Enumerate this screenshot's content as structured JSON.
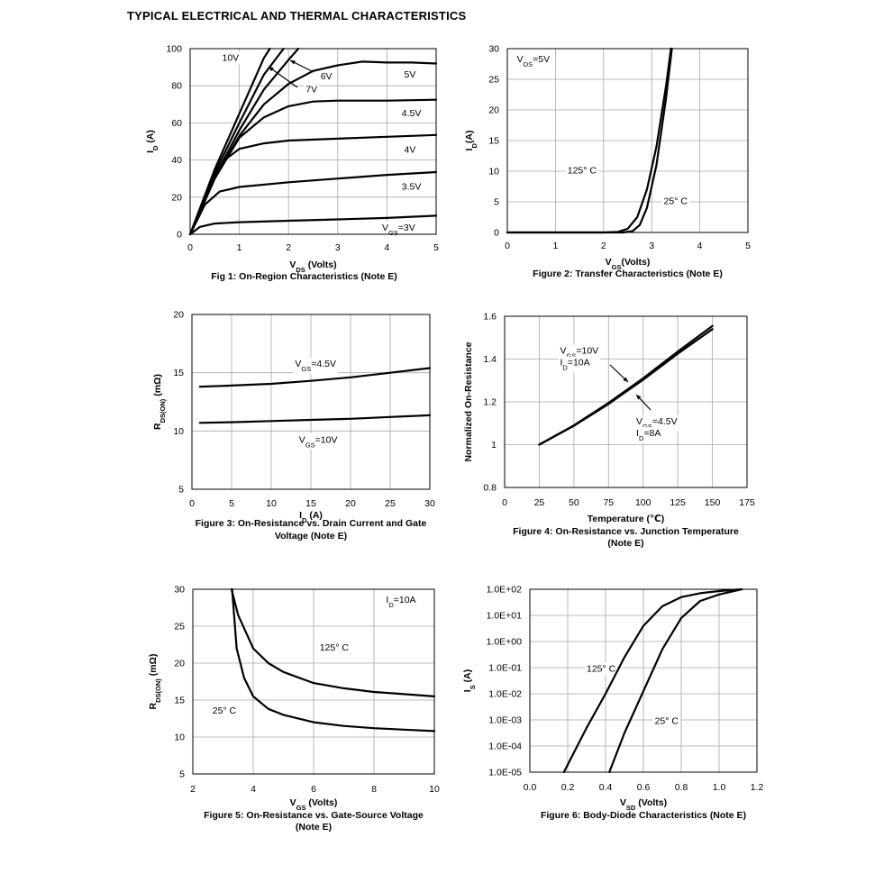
{
  "page": {
    "title": "TYPICAL ELECTRICAL AND THERMAL CHARACTERISTICS"
  },
  "chart_data": [
    {
      "id": "fig1",
      "type": "line",
      "caption": [
        "Fig 1: On-Region Characteristics (Note E)"
      ],
      "xlabel": {
        "main": "V",
        "sub": "DS",
        "rest": " (Volts)"
      },
      "ylabel": {
        "main": "I",
        "sub": "D",
        "rest": " (A)"
      },
      "xlim": [
        0,
        5
      ],
      "ylim": [
        0,
        100
      ],
      "xticks": [
        0,
        1,
        2,
        3,
        4,
        5
      ],
      "yticks": [
        0,
        20,
        40,
        60,
        80,
        100
      ],
      "xtick_labels": [
        "0",
        "1",
        "2",
        "3",
        "4",
        "5"
      ],
      "ytick_labels": [
        "0",
        "20",
        "40",
        "60",
        "80",
        "100"
      ],
      "grid": true,
      "log_y": false,
      "series": [
        {
          "name": "10V",
          "points": [
            [
              0,
              0
            ],
            [
              0.5,
              35
            ],
            [
              1,
              65
            ],
            [
              1.5,
              95
            ],
            [
              1.62,
              100
            ]
          ]
        },
        {
          "name": "7V",
          "points": [
            [
              0,
              0
            ],
            [
              0.5,
              33
            ],
            [
              1,
              60
            ],
            [
              1.5,
              86
            ],
            [
              1.9,
              100
            ]
          ]
        },
        {
          "name": "6V",
          "points": [
            [
              0,
              0
            ],
            [
              0.5,
              31
            ],
            [
              1,
              56
            ],
            [
              1.5,
              78
            ],
            [
              2.0,
              94
            ],
            [
              2.2,
              100
            ]
          ]
        },
        {
          "name": "5V",
          "points": [
            [
              0,
              0
            ],
            [
              0.5,
              30
            ],
            [
              1,
              53
            ],
            [
              1.5,
              70
            ],
            [
              2.0,
              81
            ],
            [
              2.5,
              88
            ],
            [
              3.0,
              91
            ],
            [
              3.5,
              93
            ],
            [
              4.0,
              92.5
            ],
            [
              4.5,
              92.5
            ],
            [
              5,
              92
            ]
          ]
        },
        {
          "name": "4.5V",
          "points": [
            [
              0,
              0
            ],
            [
              0.5,
              30
            ],
            [
              1,
              52
            ],
            [
              1.5,
              63
            ],
            [
              2.0,
              69
            ],
            [
              2.5,
              71.5
            ],
            [
              3,
              72
            ],
            [
              4,
              72
            ],
            [
              5,
              72.5
            ]
          ]
        },
        {
          "name": "4V",
          "points": [
            [
              0,
              0
            ],
            [
              0.4,
              26
            ],
            [
              0.7,
              40
            ],
            [
              1,
              46
            ],
            [
              1.5,
              49
            ],
            [
              2,
              50.5
            ],
            [
              3,
              51.5
            ],
            [
              4,
              52.5
            ],
            [
              5,
              53.5
            ]
          ]
        },
        {
          "name": "3.5V",
          "points": [
            [
              0,
              0
            ],
            [
              0.3,
              16
            ],
            [
              0.6,
              23
            ],
            [
              1,
              25.5
            ],
            [
              2,
              28
            ],
            [
              3,
              30
            ],
            [
              4,
              32
            ],
            [
              5,
              33.5
            ]
          ]
        },
        {
          "name": "VGS=3V",
          "points": [
            [
              0,
              0
            ],
            [
              0.2,
              4
            ],
            [
              0.5,
              5.8
            ],
            [
              1,
              6.5
            ],
            [
              2,
              7.3
            ],
            [
              3,
              8
            ],
            [
              4,
              8.8
            ],
            [
              5,
              10
            ]
          ]
        }
      ],
      "annotations": [
        {
          "text": "10V",
          "x": 0.65,
          "y": 93.5
        },
        {
          "text": "6V",
          "x": 2.65,
          "y": 83.5
        },
        {
          "text": "7V",
          "x": 2.35,
          "y": 76.5
        },
        {
          "text": "5V",
          "x": 4.35,
          "y": 84.5
        },
        {
          "text": "4.5V",
          "x": 4.3,
          "y": 63.5
        },
        {
          "text": "4V",
          "x": 4.35,
          "y": 44
        },
        {
          "text": "3.5V",
          "x": 4.3,
          "y": 24
        },
        {
          "text": "V_GS=3V",
          "x": 3.9,
          "y": 2
        }
      ]
    },
    {
      "id": "fig2",
      "type": "line",
      "caption": [
        "Figure 2: Transfer Characteristics (Note E)"
      ],
      "xlabel": {
        "main": "V",
        "sub": "GS",
        "rest": "(Volts)"
      },
      "ylabel": {
        "main": "I",
        "sub": "D",
        "rest": "(A)"
      },
      "xlim": [
        0,
        5
      ],
      "ylim": [
        0,
        30
      ],
      "xticks": [
        0,
        1,
        2,
        3,
        4,
        5
      ],
      "yticks": [
        0,
        5,
        10,
        15,
        20,
        25,
        30
      ],
      "xtick_labels": [
        "0",
        "1",
        "2",
        "3",
        "4",
        "5"
      ],
      "ytick_labels": [
        "0",
        "5",
        "10",
        "15",
        "20",
        "25",
        "30"
      ],
      "grid": true,
      "log_y": false,
      "series": [
        {
          "name": "125° C",
          "points": [
            [
              0,
              0
            ],
            [
              2.0,
              0
            ],
            [
              2.3,
              0.1
            ],
            [
              2.5,
              0.6
            ],
            [
              2.7,
              2.5
            ],
            [
              2.9,
              7
            ],
            [
              3.1,
              14
            ],
            [
              3.3,
              24
            ],
            [
              3.4,
              30
            ]
          ]
        },
        {
          "name": "25° C",
          "points": [
            [
              0,
              0
            ],
            [
              2.4,
              0
            ],
            [
              2.6,
              0.2
            ],
            [
              2.75,
              1.2
            ],
            [
              2.9,
              4
            ],
            [
              3.1,
              11
            ],
            [
              3.3,
              22
            ],
            [
              3.42,
              30
            ]
          ]
        }
      ],
      "annotations": [
        {
          "text": "V_DS=5V",
          "x": 0.2,
          "y": 27.8
        },
        {
          "text": "125° C",
          "x": 1.25,
          "y": 9.6
        },
        {
          "text": "25° C",
          "x": 3.25,
          "y": 4.6
        }
      ]
    },
    {
      "id": "fig3",
      "type": "line",
      "caption": [
        "Figure 3: On-Resistance vs. Drain Current and Gate",
        "Voltage (Note E)"
      ],
      "xlabel": {
        "main": "I",
        "sub": "D",
        "rest": " (A)"
      },
      "ylabel": {
        "main": "R",
        "sub": "DS(ON)",
        "rest": " (mΩ)"
      },
      "xlim": [
        0,
        30
      ],
      "ylim": [
        5,
        20
      ],
      "xticks": [
        0,
        5,
        10,
        15,
        20,
        25,
        30
      ],
      "yticks": [
        5,
        10,
        15,
        20
      ],
      "xtick_labels": [
        "0",
        "5",
        "10",
        "15",
        "20",
        "25",
        "30"
      ],
      "ytick_labels": [
        "5",
        "10",
        "15",
        "20"
      ],
      "grid": true,
      "log_y": false,
      "series": [
        {
          "name": "VGS=4.5V",
          "points": [
            [
              1,
              13.8
            ],
            [
              5,
              13.9
            ],
            [
              10,
              14.05
            ],
            [
              15,
              14.3
            ],
            [
              20,
              14.6
            ],
            [
              25,
              15
            ],
            [
              30,
              15.4
            ]
          ]
        },
        {
          "name": "VGS=10V",
          "points": [
            [
              1,
              10.7
            ],
            [
              5,
              10.75
            ],
            [
              10,
              10.85
            ],
            [
              15,
              10.95
            ],
            [
              20,
              11.05
            ],
            [
              25,
              11.2
            ],
            [
              30,
              11.35
            ]
          ]
        }
      ],
      "annotations": [
        {
          "text": "V_GS=4.5V",
          "x": 13,
          "y": 15.5
        },
        {
          "text": "V_GS=10V",
          "x": 13.5,
          "y": 9.0
        }
      ]
    },
    {
      "id": "fig4",
      "type": "line",
      "caption": [
        "Figure 4: On-Resistance vs. Junction Temperature",
        "(Note E)"
      ],
      "xlabel": {
        "main": "Temperature (℃)",
        "sub": "",
        "rest": ""
      },
      "ylabel": {
        "main": "Normalized On-Resistance",
        "sub": "",
        "rest": ""
      },
      "xlim": [
        0,
        175
      ],
      "ylim": [
        0.8,
        1.6
      ],
      "xticks": [
        0,
        25,
        50,
        75,
        100,
        125,
        150,
        175
      ],
      "yticks": [
        0.8,
        1.0,
        1.2,
        1.4,
        1.6
      ],
      "xtick_labels": [
        "0",
        "25",
        "50",
        "75",
        "100",
        "125",
        "150",
        "175"
      ],
      "ytick_labels": [
        "0.8",
        "1",
        "1.2",
        "1.4",
        "1.6"
      ],
      "grid": true,
      "log_y": false,
      "series": [
        {
          "name": "VGS=10V ID=10A",
          "points": [
            [
              25,
              1.0
            ],
            [
              50,
              1.09
            ],
            [
              75,
              1.195
            ],
            [
              100,
              1.31
            ],
            [
              125,
              1.435
            ],
            [
              150,
              1.555
            ]
          ]
        },
        {
          "name": "VGS=4.5V ID=8A",
          "points": [
            [
              25,
              1.0
            ],
            [
              50,
              1.088
            ],
            [
              75,
              1.19
            ],
            [
              100,
              1.303
            ],
            [
              125,
              1.425
            ],
            [
              150,
              1.54
            ]
          ]
        }
      ],
      "annotations": [
        {
          "text": "V_GS=10V",
          "x": 40,
          "y": 1.425
        },
        {
          "text": "I_D=10A",
          "x": 40,
          "y": 1.37
        },
        {
          "text": "V_GS=4.5V",
          "x": 95,
          "y": 1.095
        },
        {
          "text": "I_D=8A",
          "x": 95,
          "y": 1.04
        }
      ]
    },
    {
      "id": "fig5",
      "type": "line",
      "caption": [
        "Figure 5: On-Resistance vs. Gate-Source Voltage",
        "(Note E)"
      ],
      "xlabel": {
        "main": "V",
        "sub": "GS",
        "rest": " (Volts)"
      },
      "ylabel": {
        "main": "R",
        "sub": "DS(ON)",
        "rest": " (mΩ)"
      },
      "xlim": [
        2,
        10
      ],
      "ylim": [
        5,
        30
      ],
      "xticks": [
        2,
        4,
        6,
        8,
        10
      ],
      "yticks": [
        5,
        10,
        15,
        20,
        25,
        30
      ],
      "xtick_labels": [
        "2",
        "4",
        "6",
        "8",
        "10"
      ],
      "ytick_labels": [
        "5",
        "10",
        "15",
        "20",
        "25",
        "30"
      ],
      "grid": true,
      "log_y": false,
      "series": [
        {
          "name": "125° C",
          "points": [
            [
              3.28,
              30
            ],
            [
              3.5,
              26.5
            ],
            [
              4,
              22
            ],
            [
              4.5,
              20
            ],
            [
              5,
              18.8
            ],
            [
              6,
              17.3
            ],
            [
              7,
              16.6
            ],
            [
              8,
              16.1
            ],
            [
              9,
              15.8
            ],
            [
              10,
              15.5
            ]
          ]
        },
        {
          "name": "25° C",
          "points": [
            [
              3.3,
              30
            ],
            [
              3.45,
              22
            ],
            [
              3.7,
              18
            ],
            [
              4,
              15.5
            ],
            [
              4.5,
              13.8
            ],
            [
              5,
              13
            ],
            [
              6,
              12
            ],
            [
              7,
              11.5
            ],
            [
              8,
              11.2
            ],
            [
              9,
              11
            ],
            [
              10,
              10.8
            ]
          ]
        }
      ],
      "annotations": [
        {
          "text": "I_D=10A",
          "x": 8.4,
          "y": 28.2
        },
        {
          "text": "125° C",
          "x": 6.2,
          "y": 21.7
        },
        {
          "text": "25° C",
          "x": 2.65,
          "y": 13.2
        }
      ]
    },
    {
      "id": "fig6",
      "type": "line",
      "caption": [
        "Figure 6: Body-Diode Characteristics (Note E)"
      ],
      "xlabel": {
        "main": "V",
        "sub": "SD",
        "rest": " (Volts)"
      },
      "ylabel": {
        "main": "I",
        "sub": "S",
        "rest": " (A)"
      },
      "xlim": [
        0,
        1.2
      ],
      "ylim_exp": [
        -5,
        2
      ],
      "xticks": [
        0,
        0.2,
        0.4,
        0.6,
        0.8,
        1.0,
        1.2
      ],
      "yticks_exp": [
        -5,
        -4,
        -3,
        -2,
        -1,
        0,
        1,
        2
      ],
      "xtick_labels": [
        "0.0",
        "0.2",
        "0.4",
        "0.6",
        "0.8",
        "1.0",
        "1.2"
      ],
      "ytick_labels": [
        "1.0E-05",
        "1.0E-04",
        "1.0E-03",
        "1.0E-02",
        "1.0E-01",
        "1.0E+00",
        "1.0E+01",
        "1.0E+02"
      ],
      "grid": true,
      "log_y": true,
      "series": [
        {
          "name": "125° C",
          "points_exp": [
            [
              0.18,
              -5
            ],
            [
              0.3,
              -3.3
            ],
            [
              0.4,
              -2
            ],
            [
              0.5,
              -0.6
            ],
            [
              0.6,
              0.6
            ],
            [
              0.7,
              1.35
            ],
            [
              0.8,
              1.7
            ],
            [
              0.9,
              1.85
            ],
            [
              1.0,
              1.93
            ],
            [
              1.12,
              2
            ]
          ]
        },
        {
          "name": "25° C",
          "points_exp": [
            [
              0.42,
              -5
            ],
            [
              0.5,
              -3.5
            ],
            [
              0.6,
              -1.9
            ],
            [
              0.7,
              -0.3
            ],
            [
              0.8,
              0.9
            ],
            [
              0.9,
              1.55
            ],
            [
              1.0,
              1.8
            ],
            [
              1.12,
              2
            ]
          ]
        }
      ],
      "annotations": [
        {
          "text": "125° C",
          "x": 0.3,
          "y_exp": -1.15
        },
        {
          "text": "25° C",
          "x": 0.66,
          "y_exp": -3.15
        }
      ]
    }
  ]
}
